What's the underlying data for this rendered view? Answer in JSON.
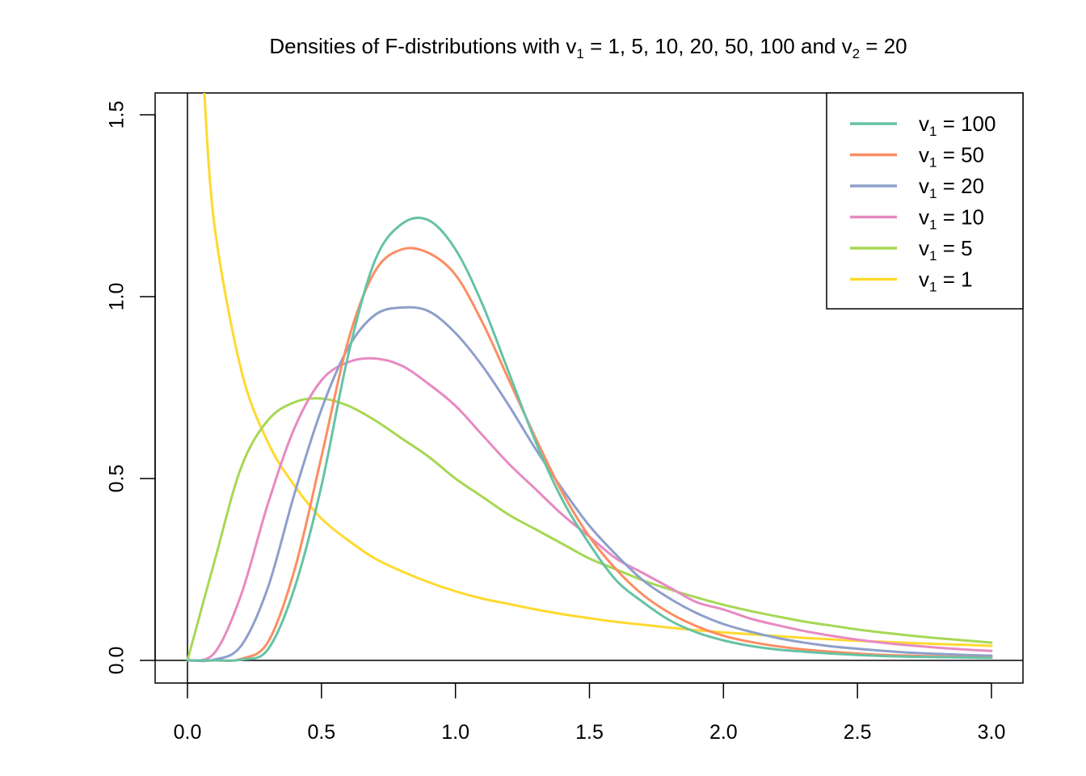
{
  "chart_data": {
    "type": "line",
    "title": {
      "prefix": "Densities of F-distributions with ",
      "v1_symbol": "v",
      "v1_subscript": "1",
      "v1_values_text": " = 1, 5, 10, 20, 50, 100 and ",
      "v2_symbol": "v",
      "v2_subscript": "2",
      "v2_value_text": " = 20"
    },
    "xlabel": "",
    "ylabel": "",
    "xlim": [
      0,
      3
    ],
    "ylim": [
      0,
      1.55
    ],
    "x_ticks": [
      0.0,
      0.5,
      1.0,
      1.5,
      2.0,
      2.5,
      3.0
    ],
    "x_tick_labels": [
      "0.0",
      "0.5",
      "1.0",
      "1.5",
      "2.0",
      "2.5",
      "3.0"
    ],
    "y_ticks": [
      0.0,
      0.5,
      1.0,
      1.5
    ],
    "y_tick_labels": [
      "0.0",
      "0.5",
      "1.0",
      "1.5"
    ],
    "reference_lines": {
      "horizontal_at_y": 0,
      "vertical_at_x": 0
    },
    "grid": false,
    "legend_position": "top-right",
    "v2": 20,
    "x": [
      0.0,
      0.1,
      0.2,
      0.3,
      0.4,
      0.5,
      0.6,
      0.7,
      0.8,
      0.9,
      1.0,
      1.1,
      1.2,
      1.3,
      1.4,
      1.5,
      1.6,
      1.7,
      1.8,
      1.9,
      2.0,
      2.1,
      2.2,
      2.3,
      2.4,
      2.5,
      2.6,
      2.7,
      2.8,
      2.9,
      3.0
    ],
    "series": [
      {
        "name": "v1 = 100",
        "symbol": "v",
        "subscript": "1",
        "value_text": " = 100",
        "color": "#66C2A5",
        "values": [
          0,
          0,
          0.002,
          0.03,
          0.2,
          0.48,
          0.84,
          1.1,
          1.2,
          1.21,
          1.13,
          0.98,
          0.79,
          0.6,
          0.44,
          0.32,
          0.22,
          0.16,
          0.11,
          0.077,
          0.055,
          0.04,
          0.03,
          0.024,
          0.019,
          0.015,
          0.012,
          0.01,
          0.009,
          0.008,
          0.007
        ]
      },
      {
        "name": "v1 = 50",
        "symbol": "v",
        "subscript": "1",
        "value_text": " = 50",
        "color": "#FC8D62",
        "values": [
          0,
          0,
          0.004,
          0.05,
          0.25,
          0.56,
          0.88,
          1.07,
          1.13,
          1.12,
          1.06,
          0.93,
          0.77,
          0.61,
          0.46,
          0.34,
          0.25,
          0.18,
          0.13,
          0.094,
          0.068,
          0.051,
          0.039,
          0.03,
          0.024,
          0.019,
          0.015,
          0.013,
          0.011,
          0.009,
          0.008
        ]
      },
      {
        "name": "v1 = 20",
        "symbol": "v",
        "subscript": "1",
        "value_text": " = 20",
        "color": "#8DA0CB",
        "values": [
          0,
          0.002,
          0.04,
          0.2,
          0.46,
          0.69,
          0.86,
          0.95,
          0.97,
          0.96,
          0.9,
          0.81,
          0.7,
          0.58,
          0.47,
          0.37,
          0.29,
          0.22,
          0.17,
          0.13,
          0.1,
          0.079,
          0.062,
          0.049,
          0.039,
          0.032,
          0.026,
          0.021,
          0.018,
          0.015,
          0.013
        ]
      },
      {
        "name": "v1 = 10",
        "symbol": "v",
        "subscript": "1",
        "value_text": " = 10",
        "color": "#E78AC3",
        "values": [
          0,
          0.02,
          0.18,
          0.43,
          0.64,
          0.77,
          0.82,
          0.83,
          0.81,
          0.76,
          0.7,
          0.62,
          0.54,
          0.47,
          0.4,
          0.34,
          0.28,
          0.24,
          0.2,
          0.16,
          0.14,
          0.115,
          0.097,
          0.081,
          0.068,
          0.057,
          0.048,
          0.041,
          0.035,
          0.03,
          0.026
        ]
      },
      {
        "name": "v1 = 5",
        "symbol": "v",
        "subscript": "1",
        "value_text": " = 5",
        "color": "#A6D854",
        "values": [
          0,
          0.27,
          0.53,
          0.66,
          0.71,
          0.72,
          0.7,
          0.66,
          0.61,
          0.56,
          0.5,
          0.45,
          0.4,
          0.36,
          0.32,
          0.28,
          0.25,
          0.22,
          0.195,
          0.173,
          0.153,
          0.136,
          0.121,
          0.107,
          0.096,
          0.085,
          0.076,
          0.068,
          0.061,
          0.055,
          0.049
        ]
      },
      {
        "name": "v1 = 1",
        "symbol": "v",
        "subscript": "1",
        "value_text": " = 1",
        "color": "#FFD92F",
        "values": [
          null,
          1.2,
          0.8,
          0.6,
          0.48,
          0.39,
          0.33,
          0.28,
          0.245,
          0.215,
          0.19,
          0.17,
          0.155,
          0.14,
          0.127,
          0.116,
          0.106,
          0.098,
          0.09,
          0.083,
          0.077,
          0.072,
          0.067,
          0.062,
          0.058,
          0.054,
          0.051,
          0.048,
          0.045,
          0.043,
          0.04
        ]
      }
    ]
  }
}
